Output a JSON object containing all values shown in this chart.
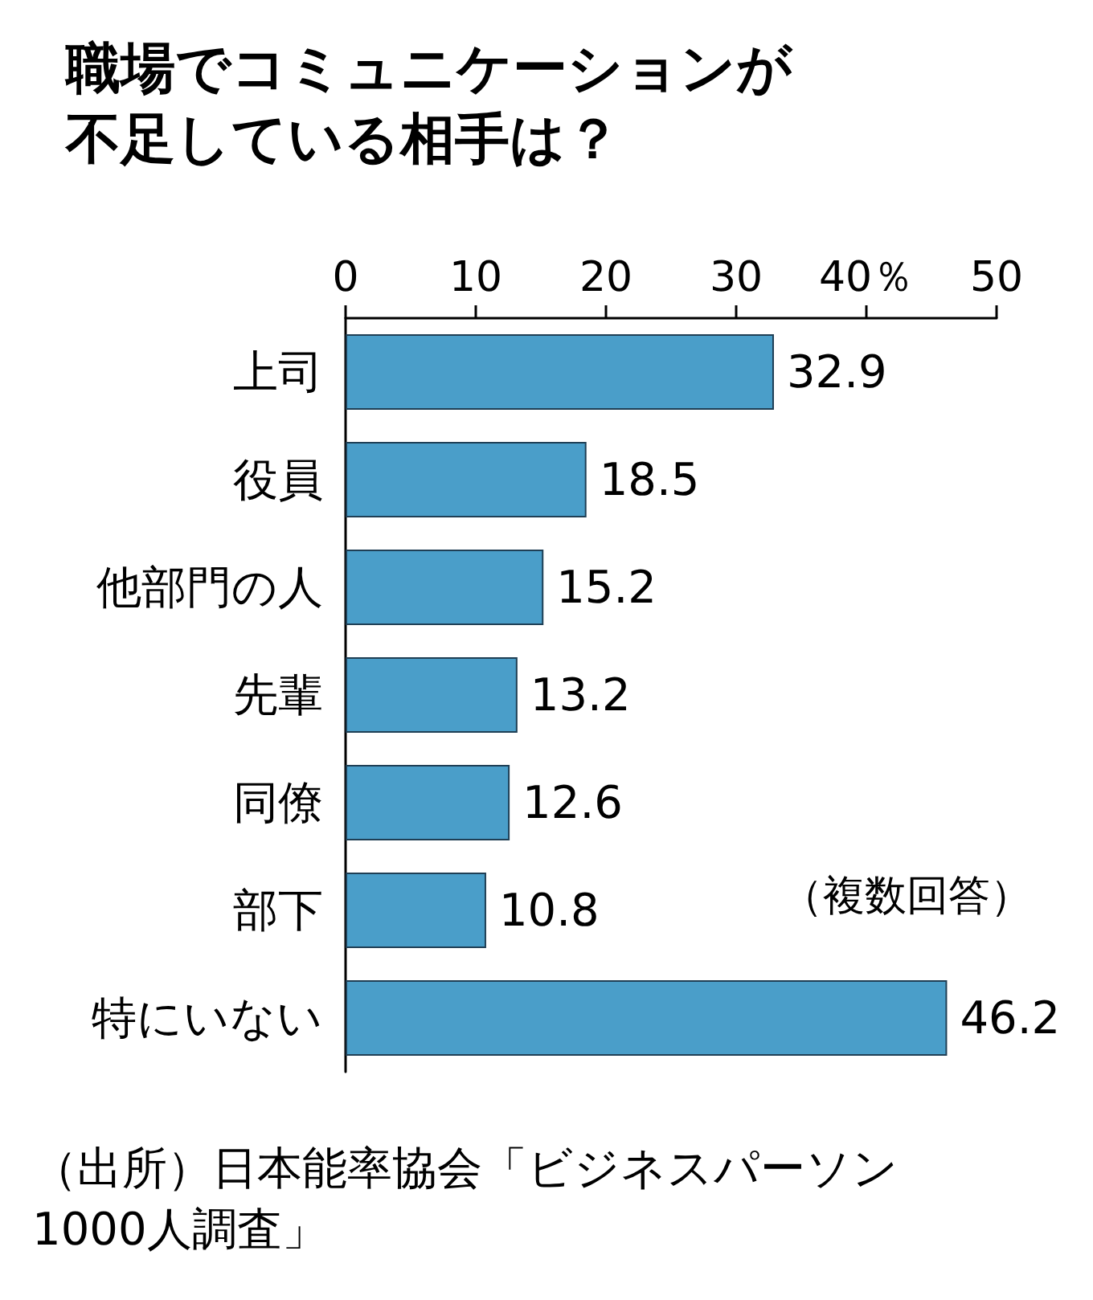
{
  "chart_data": {
    "type": "bar",
    "orientation": "horizontal",
    "title": "職場でコミュニケーションが不足している相手は？",
    "categories": [
      "上司",
      "役員",
      "他部門の人",
      "先輩",
      "同僚",
      "部下",
      "特にいない"
    ],
    "values": [
      32.9,
      18.5,
      15.2,
      13.2,
      12.6,
      10.8,
      46.2
    ],
    "color": "#4a9ec9",
    "xlim": [
      0,
      50
    ],
    "xticks": [
      0,
      10,
      20,
      30,
      {
        "value": 40,
        "label": "40％"
      },
      50
    ],
    "data_labels": true,
    "grid": false,
    "annotations": [
      "（複数回答）",
      "（出所）日本能率協会「ビジネスパーソン1000人調査」"
    ]
  }
}
